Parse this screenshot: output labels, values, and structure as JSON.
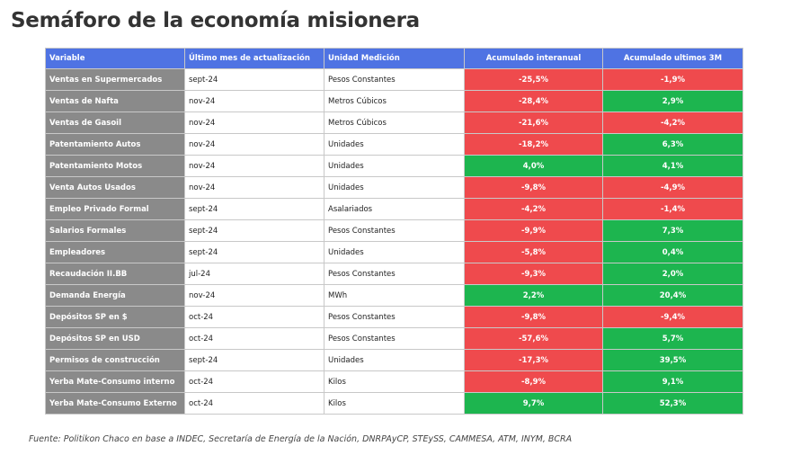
{
  "header": {
    "title": "Semáforo de la economía misionera"
  },
  "table": {
    "columns": [
      "Variable",
      "Último mes de actualización",
      "Unidad Medición",
      "Acumulado interanual",
      "Acumulado ultimos 3M"
    ],
    "colors": {
      "header": "#4f73e3",
      "variable": "#8a8a8a",
      "negative": "#ef4a4d",
      "positive": "#1db54f"
    },
    "rows": [
      [
        "Ventas en Supermercados",
        "sept-24",
        "Pesos Constantes",
        "-25,5%",
        "-1,9%"
      ],
      [
        "Ventas de Nafta",
        "nov-24",
        "Metros Cúbicos",
        "-28,4%",
        "2,9%"
      ],
      [
        "Ventas de Gasoil",
        "nov-24",
        "Metros Cúbicos",
        "-21,6%",
        "-4,2%"
      ],
      [
        "Patentamiento Autos",
        "nov-24",
        "Unidades",
        "-18,2%",
        "6,3%"
      ],
      [
        "Patentamiento Motos",
        "nov-24",
        "Unidades",
        "4,0%",
        "4,1%"
      ],
      [
        "Venta Autos Usados",
        "nov-24",
        "Unidades",
        "-9,8%",
        "-4,9%"
      ],
      [
        "Empleo Privado Formal",
        "sept-24",
        "Asalariados",
        "-4,2%",
        "-1,4%"
      ],
      [
        "Salarios Formales",
        "sept-24",
        "Pesos Constantes",
        "-9,9%",
        "7,3%"
      ],
      [
        "Empleadores",
        "sept-24",
        "Unidades",
        "-5,8%",
        "0,4%"
      ],
      [
        "Recaudación II.BB",
        "jul-24",
        "Pesos Constantes",
        "-9,3%",
        "2,0%"
      ],
      [
        "Demanda Energía",
        "nov-24",
        "MWh",
        "2,2%",
        "20,4%"
      ],
      [
        "Depósitos SP en $",
        "oct-24",
        "Pesos Constantes",
        "-9,8%",
        "-9,4%"
      ],
      [
        "Depósitos SP en USD",
        "oct-24",
        "Pesos Constantes",
        "-57,6%",
        "5,7%"
      ],
      [
        "Permisos de construcción",
        "sept-24",
        "Unidades",
        "-17,3%",
        "39,5%"
      ],
      [
        "Yerba Mate-Consumo interno",
        "oct-24",
        "Kilos",
        "-8,9%",
        "9,1%"
      ],
      [
        "Yerba Mate-Consumo Externo",
        "oct-24",
        "Kilos",
        "9,7%",
        "52,3%"
      ]
    ]
  },
  "footer": {
    "source": "Fuente: Politikon Chaco en base a INDEC, Secretaría de Energía de la Nación, DNRPAyCP, STEySS, CAMMESA, ATM, INYM, BCRA"
  }
}
